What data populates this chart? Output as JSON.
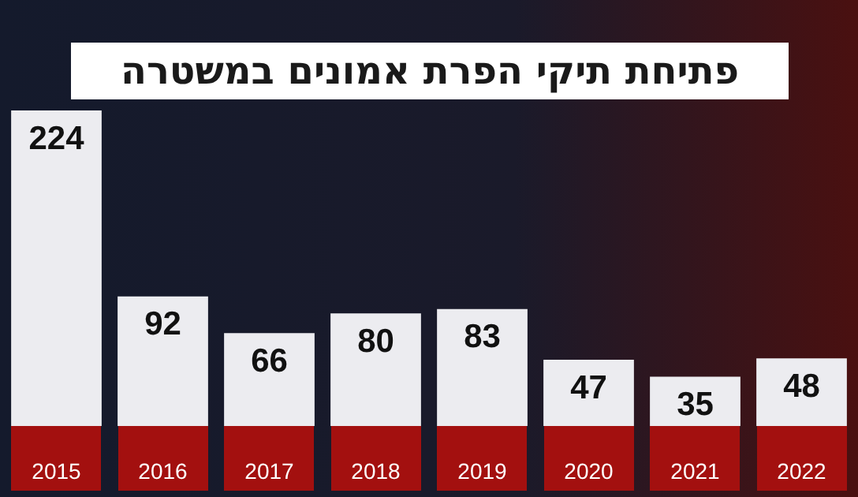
{
  "chart_data": {
    "type": "bar",
    "title": "פתיחת תיקי הפרת אמונים במשטרה",
    "categories": [
      "2015",
      "2016",
      "2017",
      "2018",
      "2019",
      "2020",
      "2021",
      "2022"
    ],
    "values": [
      224,
      92,
      66,
      80,
      83,
      47,
      35,
      48
    ],
    "color": "#ececf0",
    "data_labels": true,
    "legend": false
  }
}
